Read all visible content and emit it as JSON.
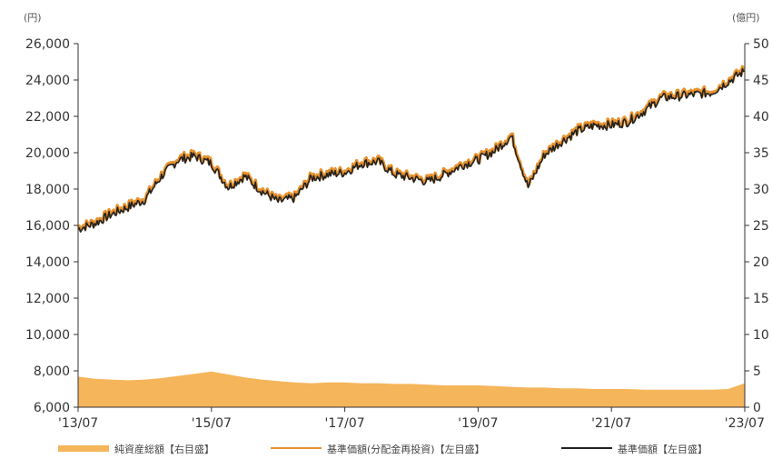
{
  "chart_data": {
    "type": "line",
    "left_unit": "(円)",
    "right_unit": "(億円)",
    "y_left_range": [
      6000,
      26000
    ],
    "y_left_ticks": [
      "26,000",
      "24,000",
      "22,000",
      "20,000",
      "18,000",
      "16,000",
      "14,000",
      "12,000",
      "10,000",
      "8,000",
      "6,000"
    ],
    "y_right_range": [
      0,
      50
    ],
    "y_right_ticks": [
      "50",
      "45",
      "40",
      "35",
      "30",
      "25",
      "20",
      "15",
      "10",
      "5",
      "0"
    ],
    "x_ticks": [
      "'13/07",
      "'15/07",
      "'17/07",
      "'19/07",
      "'21/07",
      "'23/07"
    ],
    "grid": false,
    "legend_position": "bottom",
    "series": [
      {
        "name": "純資産総額【右目盛】",
        "axis": "right",
        "kind": "area",
        "color": "#f5b55a",
        "x": [
          "2013-07",
          "2013-10",
          "2014-01",
          "2014-04",
          "2014-07",
          "2014-10",
          "2015-01",
          "2015-04",
          "2015-07",
          "2015-10",
          "2016-01",
          "2016-04",
          "2016-07",
          "2016-10",
          "2017-01",
          "2017-04",
          "2017-07",
          "2017-10",
          "2018-01",
          "2018-04",
          "2018-07",
          "2018-10",
          "2019-01",
          "2019-04",
          "2019-07",
          "2019-10",
          "2020-01",
          "2020-04",
          "2020-07",
          "2020-10",
          "2021-01",
          "2021-04",
          "2021-07",
          "2021-10",
          "2022-01",
          "2022-04",
          "2022-07",
          "2022-10",
          "2023-01",
          "2023-04",
          "2023-07"
        ],
        "values": [
          4.2,
          3.9,
          3.8,
          3.7,
          3.8,
          4.0,
          4.3,
          4.6,
          4.9,
          4.5,
          4.1,
          3.8,
          3.6,
          3.4,
          3.3,
          3.4,
          3.4,
          3.3,
          3.3,
          3.2,
          3.2,
          3.1,
          3.0,
          3.0,
          3.0,
          2.9,
          2.8,
          2.7,
          2.7,
          2.6,
          2.6,
          2.5,
          2.5,
          2.5,
          2.4,
          2.4,
          2.4,
          2.4,
          2.4,
          2.5,
          3.3
        ]
      },
      {
        "name": "基準価額(分配金再投資)【左目盛】",
        "axis": "left",
        "kind": "line",
        "color": "#e8932e",
        "x": [
          "2013-07",
          "2013-10",
          "2014-01",
          "2014-04",
          "2014-07",
          "2014-10",
          "2015-01",
          "2015-04",
          "2015-07",
          "2015-10",
          "2016-01",
          "2016-04",
          "2016-07",
          "2016-10",
          "2017-01",
          "2017-04",
          "2017-07",
          "2017-10",
          "2018-01",
          "2018-04",
          "2018-07",
          "2018-10",
          "2019-01",
          "2019-04",
          "2019-07",
          "2019-10",
          "2020-01",
          "2020-04",
          "2020-07",
          "2020-10",
          "2021-01",
          "2021-04",
          "2021-07",
          "2021-10",
          "2022-01",
          "2022-04",
          "2022-07",
          "2022-10",
          "2023-01",
          "2023-04",
          "2023-07"
        ],
        "values": [
          15900,
          16200,
          16700,
          17100,
          17500,
          18800,
          19700,
          19900,
          19500,
          18200,
          18800,
          18000,
          17400,
          17600,
          18700,
          18900,
          19000,
          19500,
          19600,
          18900,
          18700,
          18500,
          18900,
          19400,
          19700,
          20200,
          21000,
          18200,
          20000,
          20700,
          21300,
          21600,
          21600,
          21800,
          22400,
          23100,
          23200,
          23300,
          23400,
          24000,
          24600
        ]
      },
      {
        "name": "基準価額【左目盛】",
        "axis": "left",
        "kind": "line",
        "color": "#222222",
        "x": [
          "2013-07",
          "2013-10",
          "2014-01",
          "2014-04",
          "2014-07",
          "2014-10",
          "2015-01",
          "2015-04",
          "2015-07",
          "2015-10",
          "2016-01",
          "2016-04",
          "2016-07",
          "2016-10",
          "2017-01",
          "2017-04",
          "2017-07",
          "2017-10",
          "2018-01",
          "2018-04",
          "2018-07",
          "2018-10",
          "2019-01",
          "2019-04",
          "2019-07",
          "2019-10",
          "2020-01",
          "2020-04",
          "2020-07",
          "2020-10",
          "2021-01",
          "2021-04",
          "2021-07",
          "2021-10",
          "2022-01",
          "2022-04",
          "2022-07",
          "2022-10",
          "2023-01",
          "2023-04",
          "2023-07"
        ],
        "values": [
          15800,
          16100,
          16600,
          17000,
          17400,
          18700,
          19600,
          19800,
          19400,
          18100,
          18700,
          17900,
          17300,
          17500,
          18600,
          18800,
          18900,
          19400,
          19500,
          18800,
          18600,
          18400,
          18800,
          19300,
          19600,
          20100,
          20900,
          18100,
          19900,
          20600,
          21200,
          21500,
          21500,
          21700,
          22300,
          23000,
          23100,
          23200,
          23300,
          23900,
          24500
        ]
      }
    ]
  }
}
